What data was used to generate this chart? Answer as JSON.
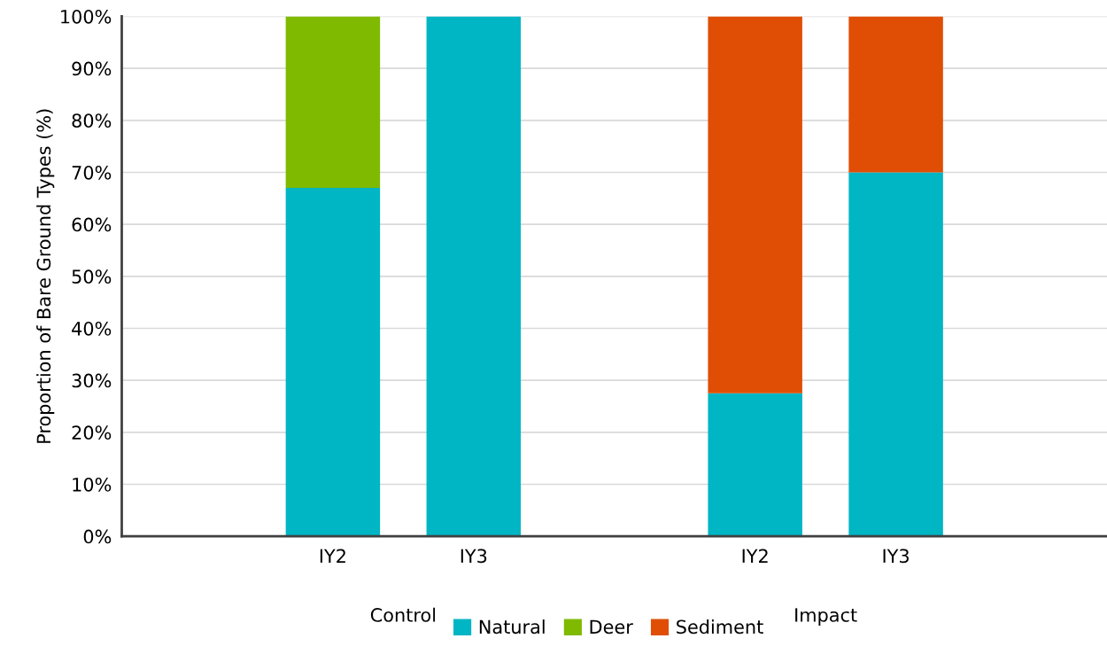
{
  "chart_data": {
    "type": "bar",
    "stacked": true,
    "ylabel": "Proportion of Bare Ground Types (%)",
    "categories": [
      null,
      "IY2",
      "IY3",
      null,
      "IY2",
      "IY3",
      null
    ],
    "series": [
      {
        "name": "Natural",
        "color": "#00b5c4",
        "values": [
          null,
          67,
          100,
          null,
          27.5,
          70,
          null
        ]
      },
      {
        "name": "Deer",
        "color": "#7fba00",
        "values": [
          null,
          33,
          null,
          null,
          null,
          null,
          null
        ]
      },
      {
        "name": "Sediment",
        "color": "#e04e06",
        "values": [
          null,
          null,
          null,
          null,
          72.5,
          30,
          null
        ]
      }
    ],
    "annotations": [
      "Control",
      "Impact"
    ],
    "ylim": [
      0,
      100
    ],
    "yticks": [
      {
        "value": 0,
        "label": "0%"
      },
      {
        "value": 10,
        "label": "10%"
      },
      {
        "value": 20,
        "label": "20%"
      },
      {
        "value": 30,
        "label": "30%"
      },
      {
        "value": 40,
        "label": "40%"
      },
      {
        "value": 50,
        "label": "50%"
      },
      {
        "value": 60,
        "label": "60%"
      },
      {
        "value": 70,
        "label": "70%"
      },
      {
        "value": 80,
        "label": "80%"
      },
      {
        "value": 90,
        "label": "90%"
      },
      {
        "value": 100,
        "label": "100%"
      }
    ],
    "grid": "y",
    "legend": "bottom"
  }
}
